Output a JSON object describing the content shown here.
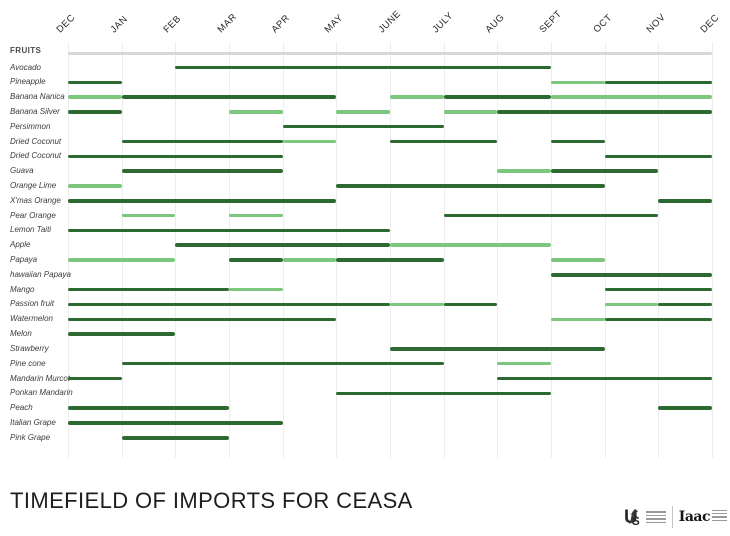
{
  "title": "TIMEFIELD OF IMPORTS FOR CEASA",
  "footer": {
    "logos": [
      {
        "name": "usl-logo",
        "text": "UfS"
      },
      {
        "name": "iaac-logo",
        "text": "Iaac"
      }
    ]
  },
  "chart_data": {
    "type": "timeline",
    "title": "TIMEFIELD OF IMPORTS FOR CEASA",
    "row_header": "FRUITS",
    "x_axis": {
      "months": [
        "DEC",
        "JAN",
        "FEB",
        "MAR",
        "APR",
        "MAY",
        "JUNE",
        "JULY",
        "AUG",
        "SEPT",
        "OCT",
        "NOV",
        "DEC"
      ],
      "note": "month index 0 = left DEC, 12 = right DEC"
    },
    "colors": {
      "dark_green": "#2d6a31",
      "light_green": "#7cc67e",
      "header_bar": "#d8d8d8",
      "gridline": "#ededed"
    },
    "grid": true,
    "legend": false,
    "rows": [
      {
        "label": "Avocado",
        "segments": [
          {
            "start": 2,
            "end": 9,
            "shade": "dark"
          }
        ]
      },
      {
        "label": "Pineapple",
        "segments": [
          {
            "start": 0,
            "end": 1,
            "shade": "dark"
          },
          {
            "start": 9,
            "end": 10,
            "shade": "light"
          },
          {
            "start": 10,
            "end": 12,
            "shade": "dark"
          }
        ]
      },
      {
        "label": "Banana Nanica",
        "segments": [
          {
            "start": 0,
            "end": 1,
            "shade": "light"
          },
          {
            "start": 1,
            "end": 5,
            "shade": "dark"
          },
          {
            "start": 6,
            "end": 7,
            "shade": "light"
          },
          {
            "start": 7,
            "end": 9,
            "shade": "dark"
          },
          {
            "start": 9,
            "end": 12,
            "shade": "light"
          }
        ]
      },
      {
        "label": "Banana Silver",
        "segments": [
          {
            "start": 0,
            "end": 1,
            "shade": "dark"
          },
          {
            "start": 3,
            "end": 4,
            "shade": "light"
          },
          {
            "start": 5,
            "end": 6,
            "shade": "light"
          },
          {
            "start": 7,
            "end": 8,
            "shade": "light"
          },
          {
            "start": 8,
            "end": 12,
            "shade": "dark"
          }
        ]
      },
      {
        "label": "Persimmon",
        "segments": [
          {
            "start": 4,
            "end": 7,
            "shade": "dark"
          }
        ]
      },
      {
        "label": "Dried Coconut",
        "segments": [
          {
            "start": 1,
            "end": 4,
            "shade": "dark"
          },
          {
            "start": 4,
            "end": 5,
            "shade": "light"
          },
          {
            "start": 6,
            "end": 8,
            "shade": "dark"
          },
          {
            "start": 9,
            "end": 10,
            "shade": "dark"
          }
        ]
      },
      {
        "label": "Dried Coconut",
        "segments": [
          {
            "start": 0,
            "end": 4,
            "shade": "dark"
          },
          {
            "start": 10,
            "end": 12,
            "shade": "dark"
          }
        ]
      },
      {
        "label": "Guava",
        "segments": [
          {
            "start": 1,
            "end": 4,
            "shade": "dark"
          },
          {
            "start": 8,
            "end": 9,
            "shade": "light"
          },
          {
            "start": 9,
            "end": 11,
            "shade": "dark"
          }
        ]
      },
      {
        "label": "Orange Lime",
        "segments": [
          {
            "start": 0,
            "end": 1,
            "shade": "light"
          },
          {
            "start": 5,
            "end": 10,
            "shade": "dark"
          }
        ]
      },
      {
        "label": "X'mas Orange",
        "segments": [
          {
            "start": 0,
            "end": 5,
            "shade": "dark"
          },
          {
            "start": 11,
            "end": 12,
            "shade": "dark"
          }
        ]
      },
      {
        "label": "Pear Orange",
        "segments": [
          {
            "start": 1,
            "end": 2,
            "shade": "light"
          },
          {
            "start": 3,
            "end": 4,
            "shade": "light"
          },
          {
            "start": 7,
            "end": 11,
            "shade": "dark"
          }
        ]
      },
      {
        "label": "Lemon Taiti",
        "segments": [
          {
            "start": 0,
            "end": 6,
            "shade": "dark"
          }
        ]
      },
      {
        "label": "Apple",
        "segments": [
          {
            "start": 2,
            "end": 6,
            "shade": "dark"
          },
          {
            "start": 6,
            "end": 9,
            "shade": "light"
          }
        ]
      },
      {
        "label": "Papaya",
        "segments": [
          {
            "start": 0,
            "end": 2,
            "shade": "light"
          },
          {
            "start": 3,
            "end": 4,
            "shade": "dark"
          },
          {
            "start": 4,
            "end": 5,
            "shade": "light"
          },
          {
            "start": 5,
            "end": 7,
            "shade": "dark"
          },
          {
            "start": 9,
            "end": 10,
            "shade": "light"
          }
        ]
      },
      {
        "label": "hawaiian Papaya",
        "segments": [
          {
            "start": 9,
            "end": 12,
            "shade": "dark"
          }
        ]
      },
      {
        "label": "Mango",
        "segments": [
          {
            "start": 0,
            "end": 3,
            "shade": "dark"
          },
          {
            "start": 3,
            "end": 4,
            "shade": "light"
          },
          {
            "start": 10,
            "end": 12,
            "shade": "dark"
          }
        ]
      },
      {
        "label": "Passion fruit",
        "segments": [
          {
            "start": 0,
            "end": 6,
            "shade": "dark"
          },
          {
            "start": 6,
            "end": 7,
            "shade": "light"
          },
          {
            "start": 7,
            "end": 8,
            "shade": "dark"
          },
          {
            "start": 10,
            "end": 11,
            "shade": "light"
          },
          {
            "start": 11,
            "end": 12,
            "shade": "dark"
          }
        ]
      },
      {
        "label": "Watermelon",
        "segments": [
          {
            "start": 0,
            "end": 5,
            "shade": "dark"
          },
          {
            "start": 9,
            "end": 10,
            "shade": "light"
          },
          {
            "start": 10,
            "end": 12,
            "shade": "dark"
          }
        ]
      },
      {
        "label": "Melon",
        "segments": [
          {
            "start": 0,
            "end": 2,
            "shade": "dark"
          }
        ]
      },
      {
        "label": "Strawberry",
        "segments": [
          {
            "start": 6,
            "end": 10,
            "shade": "dark"
          }
        ]
      },
      {
        "label": "Pine cone",
        "segments": [
          {
            "start": 1,
            "end": 7,
            "shade": "dark"
          },
          {
            "start": 8,
            "end": 9,
            "shade": "light"
          }
        ]
      },
      {
        "label": "Mandarin Murcot",
        "segments": [
          {
            "start": 0,
            "end": 1,
            "shade": "dark"
          },
          {
            "start": 8,
            "end": 12,
            "shade": "dark"
          }
        ]
      },
      {
        "label": "Ponkan Mandarin",
        "segments": [
          {
            "start": 5,
            "end": 9,
            "shade": "dark"
          }
        ]
      },
      {
        "label": "Peach",
        "segments": [
          {
            "start": 0,
            "end": 3,
            "shade": "dark"
          },
          {
            "start": 11,
            "end": 12,
            "shade": "dark"
          }
        ]
      },
      {
        "label": "Italian Grape",
        "segments": [
          {
            "start": 0,
            "end": 4,
            "shade": "dark"
          }
        ]
      },
      {
        "label": "Pink Grape",
        "segments": [
          {
            "start": 1,
            "end": 3,
            "shade": "dark"
          }
        ]
      }
    ]
  }
}
